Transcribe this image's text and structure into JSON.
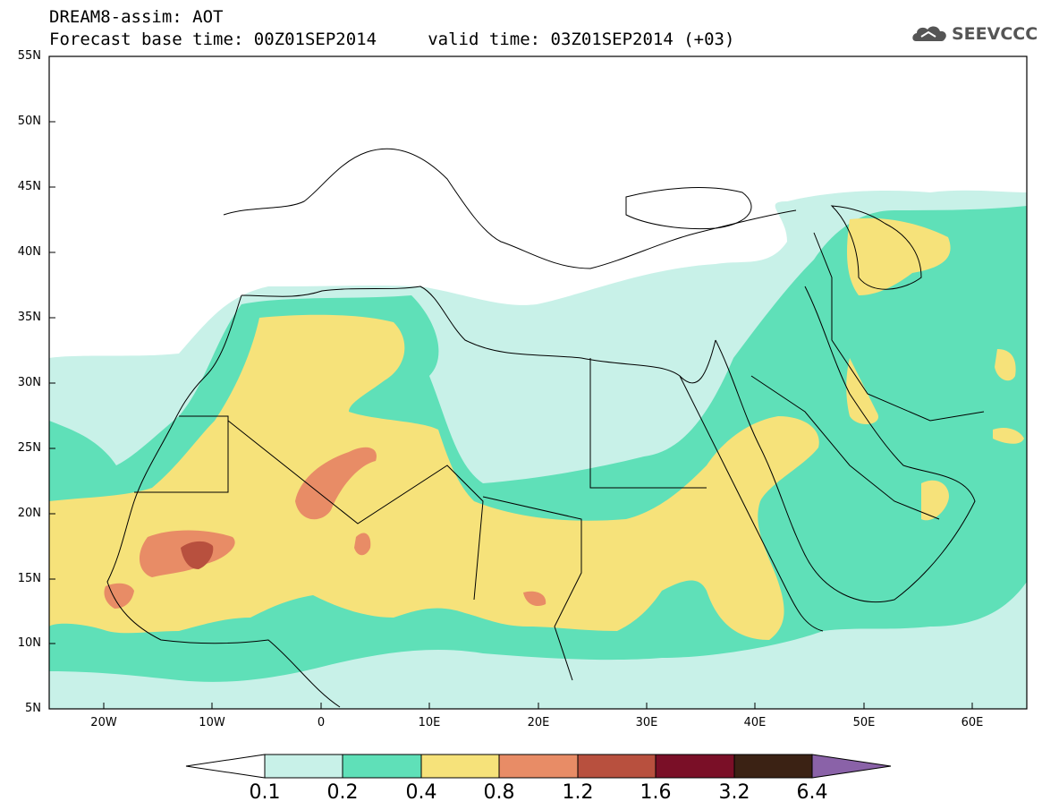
{
  "title_line1": "DREAM8-assim: AOT",
  "title_line2": "Forecast base time: 00Z01SEP2014     valid time: 03Z01SEP2014 (+03)",
  "logo": {
    "text": "SEEVCCC",
    "icon": "cloud-icon"
  },
  "map": {
    "projection": "lat-lon",
    "lon_range": [
      -25,
      65
    ],
    "lat_range": [
      5,
      55
    ],
    "lat_labels": [
      "55N",
      "50N",
      "45N",
      "40N",
      "35N",
      "30N",
      "25N",
      "20N",
      "15N",
      "10N",
      "5N"
    ],
    "lon_labels": [
      "20W",
      "10W",
      "0",
      "10E",
      "20E",
      "30E",
      "40E",
      "50E",
      "60E"
    ]
  },
  "colorbar": {
    "labels": [
      "0.1",
      "0.2",
      "0.4",
      "0.8",
      "1.2",
      "1.6",
      "3.2",
      "6.4"
    ],
    "colors": [
      "#ffffff",
      "#c8f1e8",
      "#5fe0b8",
      "#f6e27a",
      "#e88c66",
      "#b8503e",
      "#7a0f27",
      "#3b2214",
      "#8a62a8"
    ]
  },
  "colors": {
    "aot_01_02": "#c8f1e8",
    "aot_02_04": "#5fe0b8",
    "aot_04_08": "#f6e27a",
    "aot_08_12": "#e88c66",
    "aot_12_16": "#b8503e"
  }
}
